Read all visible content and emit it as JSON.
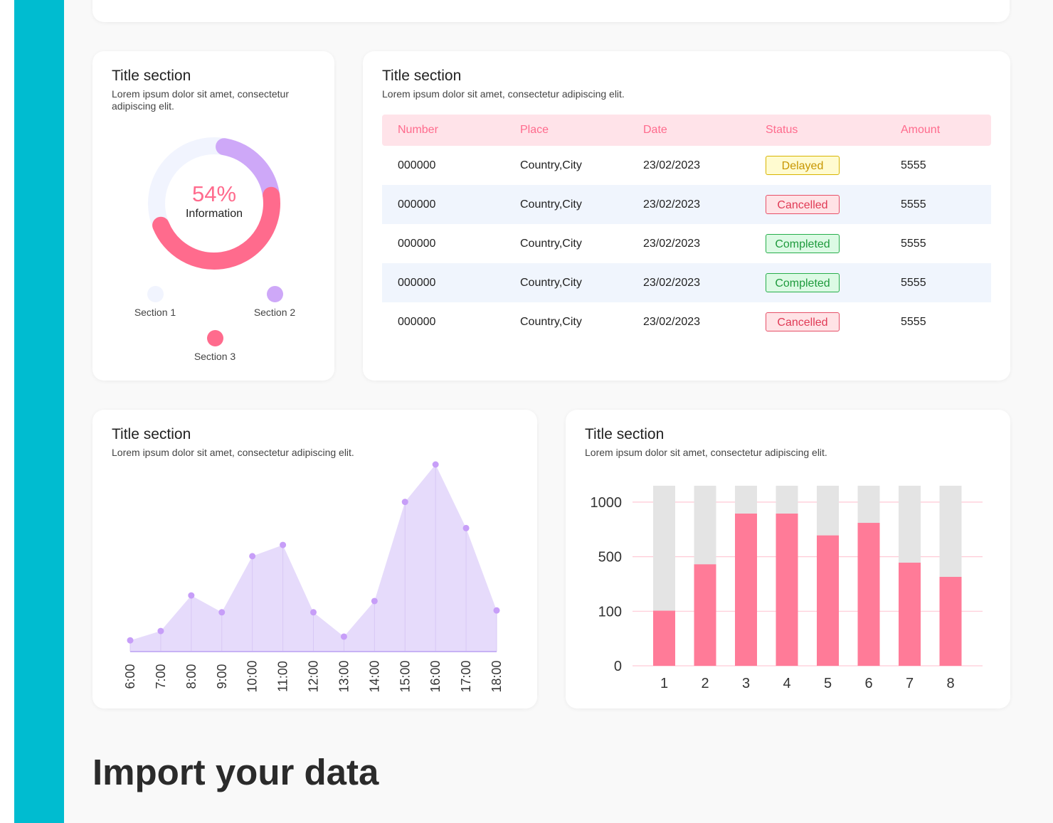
{
  "donut_card": {
    "title": "Title section",
    "subtitle": "Lorem ipsum dolor sit amet, consectetur adipiscing elit.",
    "percent_label": "54%",
    "center_label": "Information",
    "legend": [
      {
        "label": "Section 1",
        "color": "#f1f4fe"
      },
      {
        "label": "Section 2",
        "color": "#cea8f8"
      },
      {
        "label": "Section 3",
        "color": "#ff6b8d"
      }
    ]
  },
  "table_card": {
    "title": "Title section",
    "subtitle": "Lorem ipsum dolor sit amet, consectetur adipiscing elit.",
    "columns": [
      "Number",
      "Place",
      "Date",
      "Status",
      "Amount"
    ],
    "rows": [
      {
        "number": "000000",
        "place": "Country,City",
        "date": "23/02/2023",
        "status": "Delayed",
        "amount": "5555"
      },
      {
        "number": "000000",
        "place": "Country,City",
        "date": "23/02/2023",
        "status": "Cancelled",
        "amount": "5555"
      },
      {
        "number": "000000",
        "place": "Country,City",
        "date": "23/02/2023",
        "status": "Completed",
        "amount": "5555"
      },
      {
        "number": "000000",
        "place": "Country,City",
        "date": "23/02/2023",
        "status": "Completed",
        "amount": "5555"
      },
      {
        "number": "000000",
        "place": "Country,City",
        "date": "23/02/2023",
        "status": "Cancelled",
        "amount": "5555"
      }
    ]
  },
  "area_card": {
    "title": "Title section",
    "subtitle": "Lorem ipsum dolor sit amet, consectetur adipiscing elit."
  },
  "bar_card": {
    "title": "Title section",
    "subtitle": "Lorem ipsum dolor sit amet, consectetur adipiscing elit."
  },
  "import_title": "Import your data",
  "colors": {
    "sidebar": "#00bcd0",
    "accent_pink": "#ff6b8d",
    "accent_purple": "#cea8f8",
    "area_fill": "#e6dbfb",
    "bar_track": "#e4e4e4"
  },
  "chart_data": [
    {
      "type": "pie",
      "variant": "donut",
      "center_text": "54%",
      "center_label": "Information",
      "slices": [
        {
          "name": "Section 1",
          "value": 34,
          "color": "#f1f4fe"
        },
        {
          "name": "Section 2",
          "value": 20,
          "color": "#cea8f8"
        },
        {
          "name": "Section 3",
          "value": 46,
          "color": "#ff6b8d"
        }
      ]
    },
    {
      "type": "area",
      "title": "Title section",
      "x": [
        "6:00",
        "7:00",
        "8:00",
        "9:00",
        "10:00",
        "11:00",
        "12:00",
        "13:00",
        "14:00",
        "15:00",
        "16:00",
        "17:00",
        "18:00"
      ],
      "values": [
        6,
        11,
        30,
        21,
        51,
        57,
        21,
        8,
        27,
        80,
        100,
        66,
        22
      ],
      "ylim": [
        0,
        100
      ],
      "grid": false,
      "color": "#c79ef8"
    },
    {
      "type": "bar",
      "stacked": true,
      "title": "Title section",
      "categories": [
        "1",
        "2",
        "3",
        "4",
        "5",
        "6",
        "7",
        "8"
      ],
      "scale": "non-linear",
      "ytick_labels": [
        "0",
        "100",
        "500",
        "1000"
      ],
      "yticks_position": [
        0,
        1,
        2,
        3
      ],
      "values_position": [
        1.01,
        1.86,
        2.79,
        2.79,
        2.39,
        2.62,
        1.89,
        1.63
      ],
      "track_position": 3.3,
      "colors": {
        "value": "#ff7b98",
        "track": "#e4e4e4",
        "gridline": "#ffcad6"
      },
      "grid": true
    }
  ]
}
